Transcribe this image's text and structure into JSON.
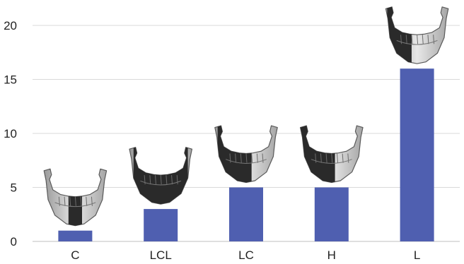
{
  "chart_data": {
    "type": "bar",
    "categories": [
      "C",
      "LCL",
      "LC",
      "H",
      "L"
    ],
    "values": [
      1,
      3,
      5,
      5,
      16
    ],
    "ylim": [
      0,
      20
    ],
    "yticks": [
      0,
      5,
      10,
      15,
      20
    ],
    "grid": true,
    "bar_color": "#4f5fb0",
    "annotations": [
      {
        "category": "C",
        "icon": "mandible-icon",
        "shaded_region": "central-segment"
      },
      {
        "category": "LCL",
        "icon": "mandible-icon",
        "shaded_region": "full-body"
      },
      {
        "category": "LC",
        "icon": "mandible-icon",
        "shaded_region": "left-half-with-center"
      },
      {
        "category": "H",
        "icon": "mandible-icon",
        "shaded_region": "left-half-with-ramus"
      },
      {
        "category": "L",
        "icon": "mandible-icon",
        "shaded_region": "lateral-segment"
      }
    ]
  }
}
